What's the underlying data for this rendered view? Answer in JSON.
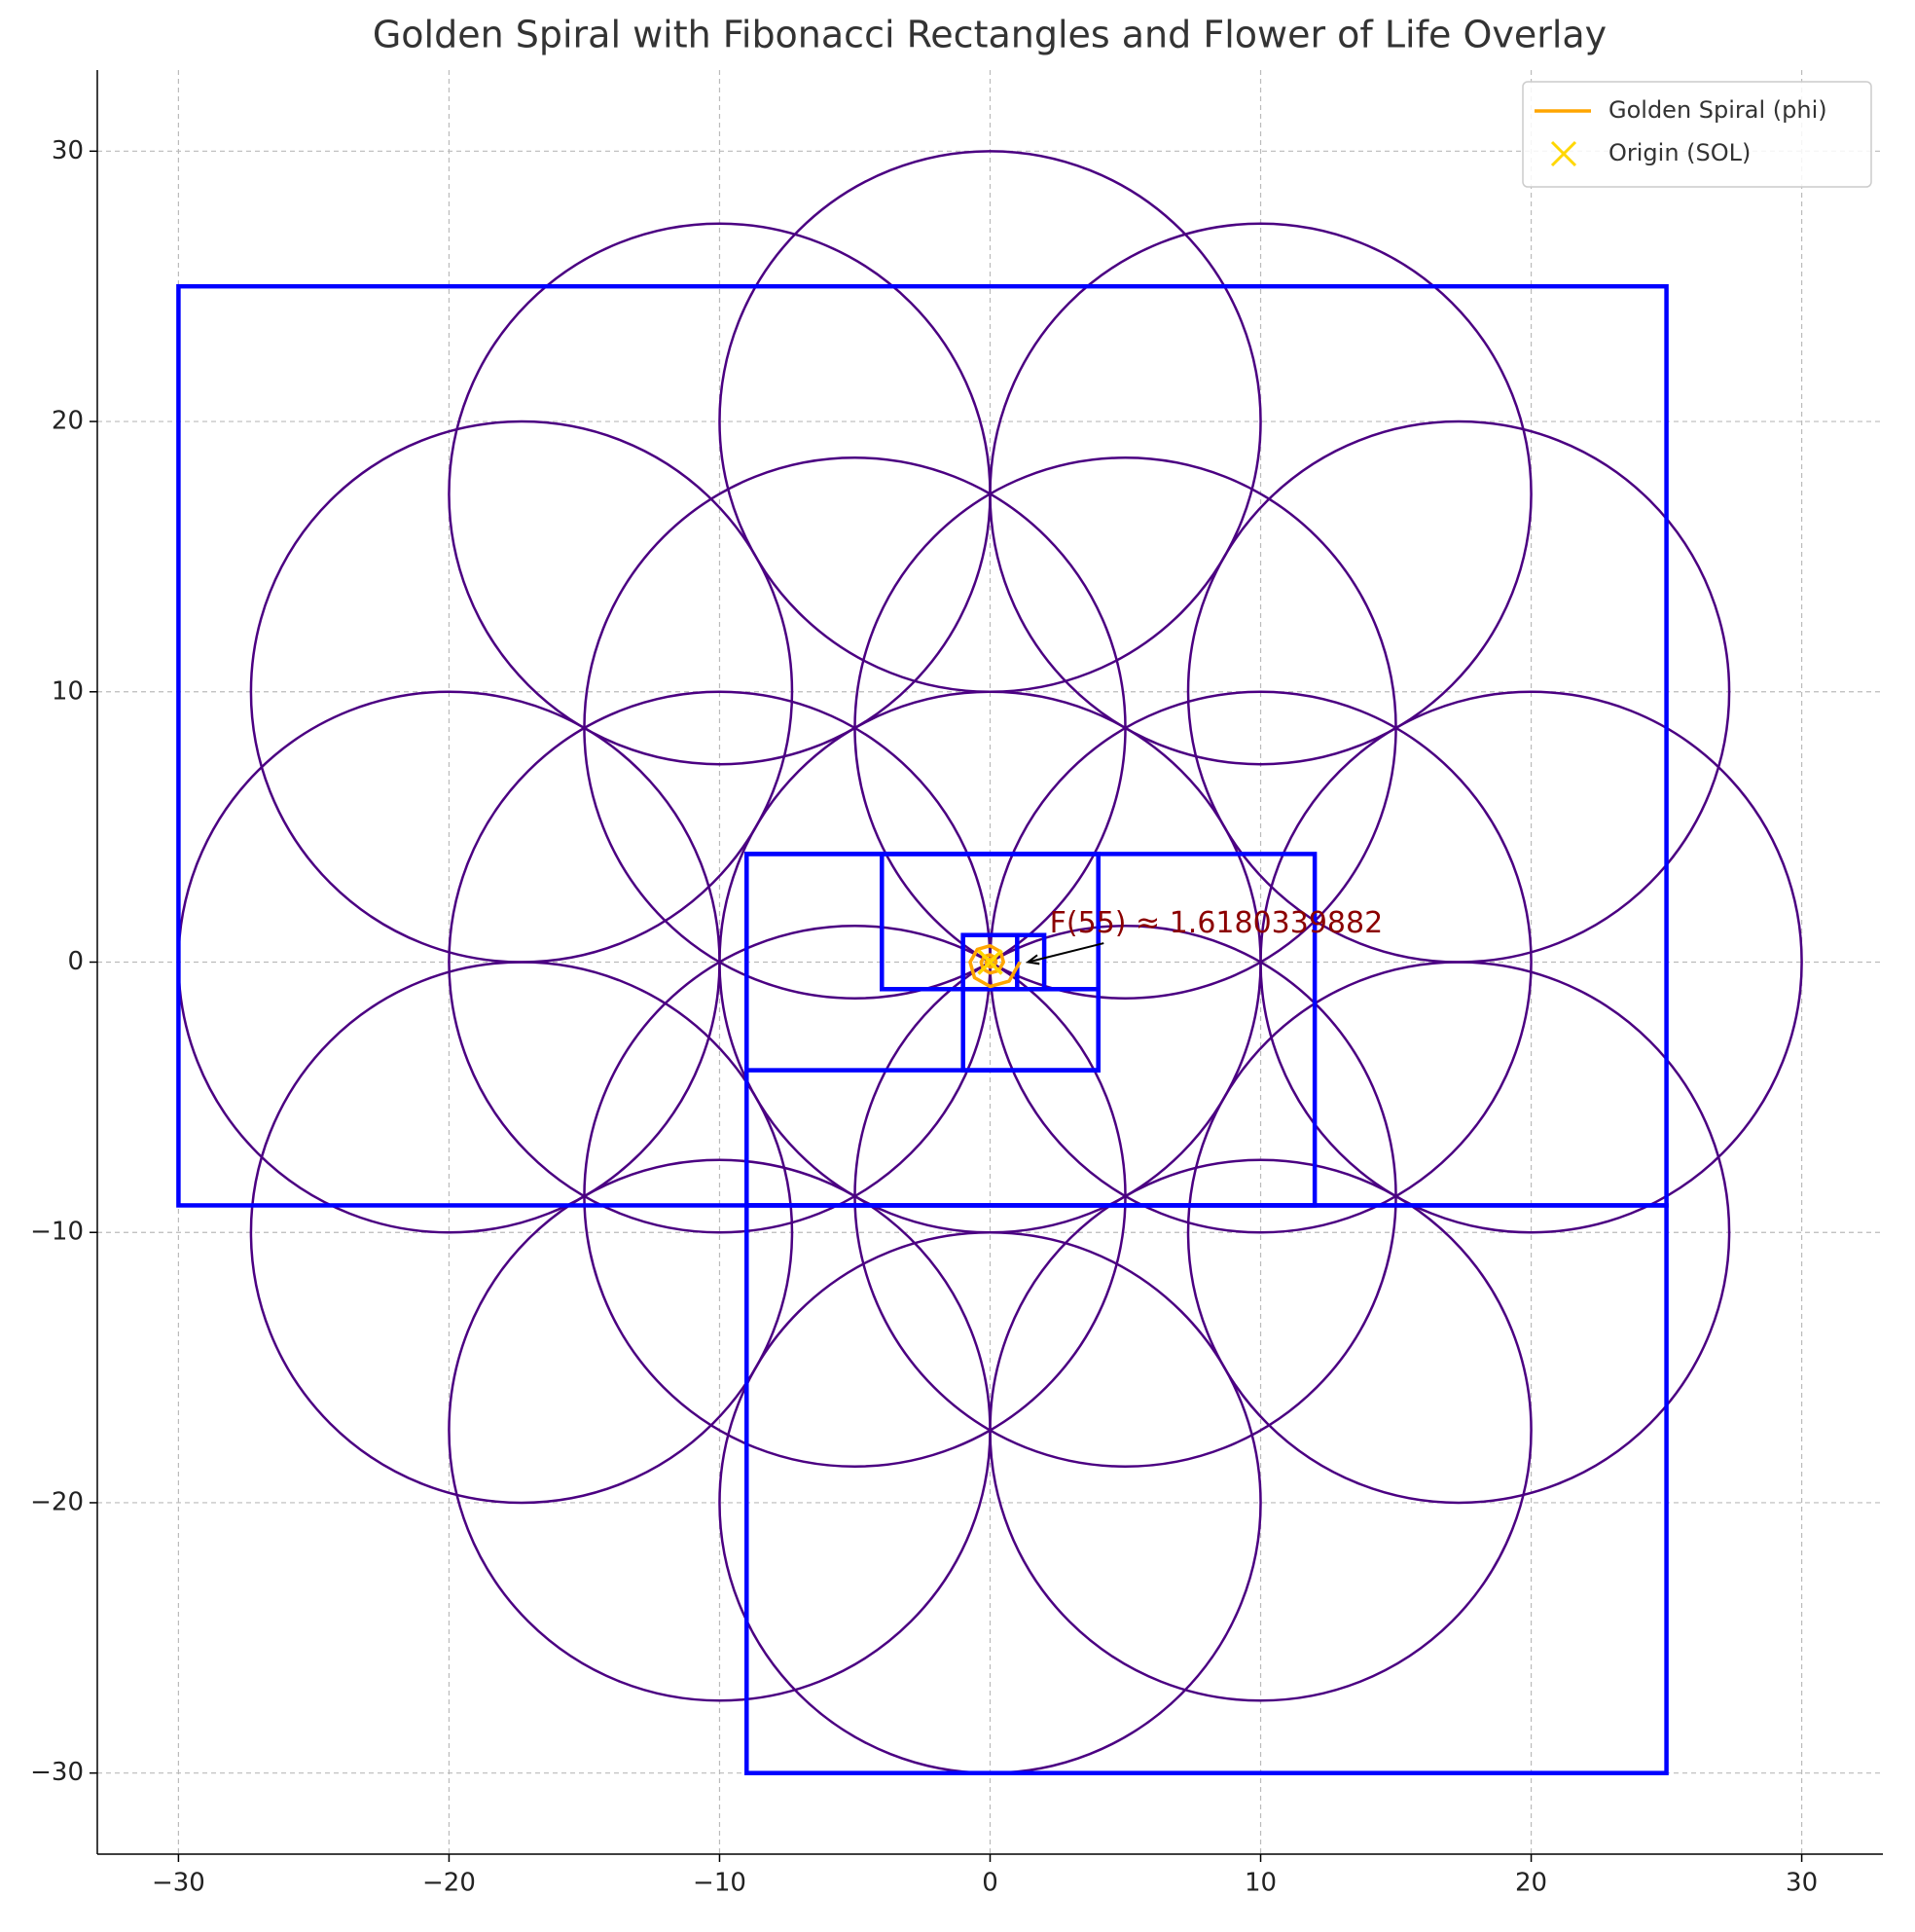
{
  "chart_data": {
    "type": "geometry",
    "title": "Golden Spiral with Fibonacci Rectangles and Flower of Life Overlay",
    "xlim": [
      -33,
      33
    ],
    "ylim": [
      -33,
      33
    ],
    "xticks": [
      {
        "value": -30,
        "label": "−30"
      },
      {
        "value": -20,
        "label": "−20"
      },
      {
        "value": -10,
        "label": "−10"
      },
      0,
      10,
      20,
      30
    ],
    "yticks": [
      {
        "value": -30,
        "label": "−30"
      },
      {
        "value": -20,
        "label": "−20"
      },
      {
        "value": -10,
        "label": "−10"
      },
      0,
      10,
      20,
      30
    ],
    "grid": true,
    "legend_position": "upper right",
    "circles": {
      "color": "#4b0082",
      "items": [
        {
          "center": [
            0,
            0
          ],
          "radius": 10
        },
        {
          "center": [
            10,
            0
          ],
          "radius": 10
        },
        {
          "center": [
            5,
            8.66
          ],
          "radius": 10
        },
        {
          "center": [
            -5,
            8.66
          ],
          "radius": 10
        },
        {
          "center": [
            -10,
            0
          ],
          "radius": 10
        },
        {
          "center": [
            -5,
            -8.66
          ],
          "radius": 10
        },
        {
          "center": [
            5,
            -8.66
          ],
          "radius": 10
        },
        {
          "center": [
            20,
            0
          ],
          "radius": 10
        },
        {
          "center": [
            17.32,
            10
          ],
          "radius": 10
        },
        {
          "center": [
            10,
            17.32
          ],
          "radius": 10
        },
        {
          "center": [
            0,
            20
          ],
          "radius": 10
        },
        {
          "center": [
            -10,
            17.32
          ],
          "radius": 10
        },
        {
          "center": [
            -17.32,
            10
          ],
          "radius": 10
        },
        {
          "center": [
            -20,
            0
          ],
          "radius": 10
        },
        {
          "center": [
            -17.32,
            -10
          ],
          "radius": 10
        },
        {
          "center": [
            -10,
            -17.32
          ],
          "radius": 10
        },
        {
          "center": [
            0,
            -20
          ],
          "radius": 10
        },
        {
          "center": [
            10,
            -17.32
          ],
          "radius": 10
        },
        {
          "center": [
            17.32,
            -10
          ],
          "radius": 10
        }
      ]
    },
    "rectangles": {
      "color": "#0000ff",
      "items": [
        {
          "x": -30,
          "y": -9,
          "width": 55,
          "height": 34
        },
        {
          "x": -9,
          "y": -30,
          "width": 34,
          "height": 21
        },
        {
          "x": -9,
          "y": -9,
          "width": 21,
          "height": 13
        },
        {
          "x": -9,
          "y": -4,
          "width": 13,
          "height": 8
        },
        {
          "x": -4,
          "y": -1,
          "width": 8,
          "height": 5
        },
        {
          "x": -1,
          "y": -4,
          "width": 5,
          "height": 3
        },
        {
          "x": -1,
          "y": -1,
          "width": 3,
          "height": 2
        },
        {
          "x": -1,
          "y": -1,
          "width": 2,
          "height": 2
        }
      ]
    },
    "series": [
      {
        "name": "Golden Spiral (phi)",
        "color": "#ffa500",
        "x": [
          0.1,
          0.078,
          0,
          -0.095,
          -0.149,
          -0.117,
          0,
          0.142,
          0.222,
          0.174,
          0,
          -0.212,
          -0.332,
          -0.259,
          0,
          0.317,
          0.495,
          0.387,
          0,
          -0.472,
          -0.738,
          -0.576,
          0,
          0.704,
          1.1
        ],
        "y": [
          0,
          0.078,
          0.122,
          0.095,
          0,
          -0.117,
          -0.182,
          -0.142,
          0,
          0.174,
          0.271,
          0.212,
          0,
          -0.259,
          -0.405,
          -0.317,
          0,
          0.387,
          0.604,
          0.472,
          0,
          -0.576,
          -0.901,
          -0.704,
          0
        ]
      },
      {
        "name": "Origin (SOL)",
        "color": "#ffd700",
        "marker": "x",
        "x": [
          0
        ],
        "y": [
          0
        ]
      }
    ],
    "annotation": {
      "text": "F(55) ≈ 1.6180339882",
      "color": "#8b0000",
      "xy": [
        1.4,
        0
      ],
      "xytext": [
        2.2,
        1.4
      ]
    }
  }
}
